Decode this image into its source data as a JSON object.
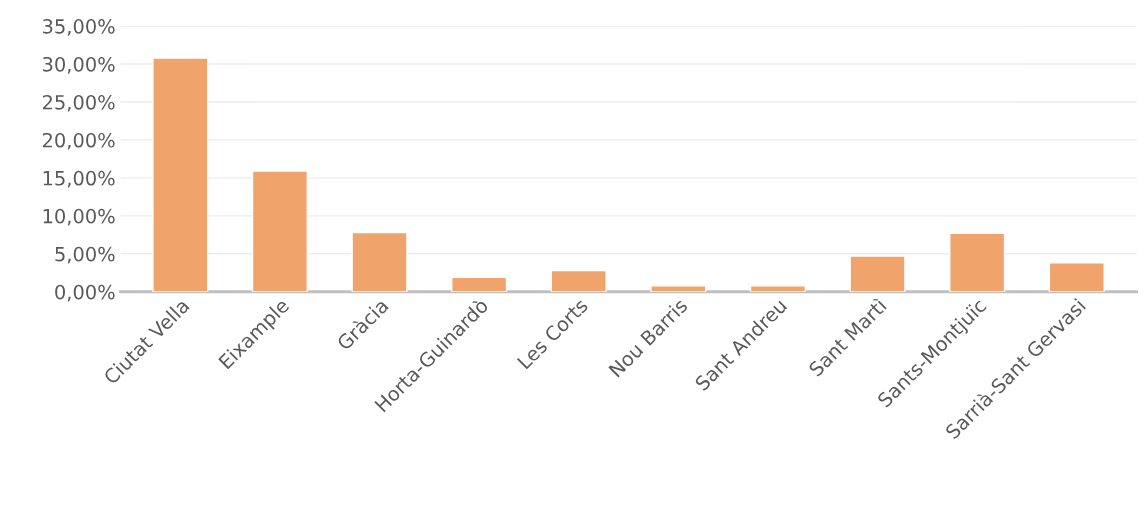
{
  "chart_data": {
    "type": "bar",
    "categories": [
      "Ciutat Vella",
      "Eixample",
      "Gràcia",
      "Horta-Guinardò",
      "Les Corts",
      "Nou Barris",
      "Sant Andreu",
      "Sant Martì",
      "Sants-Montjuïc",
      "Sarrià-Sant Gervasi"
    ],
    "values": [
      30.8,
      15.9,
      7.8,
      1.9,
      2.8,
      0.8,
      0.8,
      4.7,
      7.7,
      3.8
    ],
    "color": "#f0a46c",
    "ylim": [
      0,
      35
    ],
    "yticks": [
      {
        "value": 0,
        "label": "0,00%"
      },
      {
        "value": 5,
        "label": "5,00%"
      },
      {
        "value": 10,
        "label": "10,00%"
      },
      {
        "value": 15,
        "label": "15,00%"
      },
      {
        "value": 20,
        "label": "20,00%"
      },
      {
        "value": 25,
        "label": "25,00%"
      },
      {
        "value": 30,
        "label": "30,00%"
      },
      {
        "value": 35,
        "label": "35,00%"
      }
    ],
    "grid": "y"
  }
}
